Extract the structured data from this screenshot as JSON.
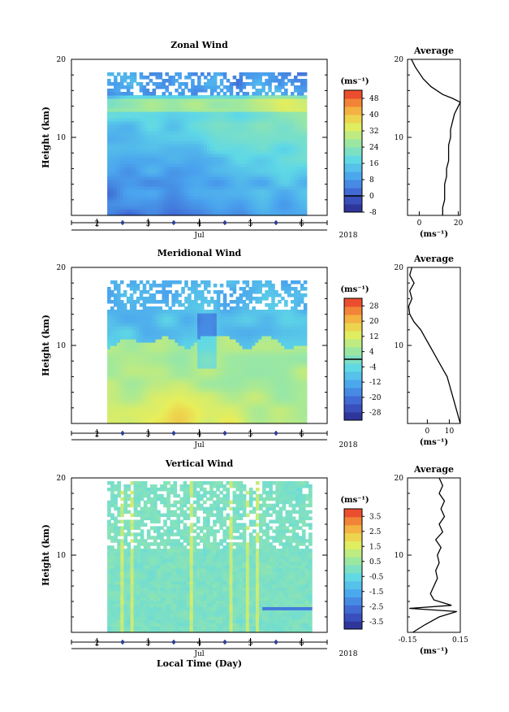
{
  "chart_data": [
    {
      "type": "heatmap",
      "title": "Zonal Wind",
      "ylabel": "Height (km)",
      "ylim": [
        0,
        20
      ],
      "yticks": [
        "10",
        "20"
      ],
      "x_ticks": [
        "2",
        "3",
        "4",
        "5",
        "6"
      ],
      "x_month": "Jul",
      "year": "2018",
      "xlim": [
        1.5,
        6.5
      ],
      "data_x_range": [
        2.2,
        6.1
      ],
      "colorbar": {
        "unit": "(ms⁻¹)",
        "ticks": [
          "48",
          "40",
          "32",
          "24",
          "16",
          "8",
          "0",
          "-8"
        ],
        "range": [
          -8,
          52
        ],
        "contour_level": "0"
      },
      "average": {
        "title": "Average",
        "xlabel": "(ms⁻¹)",
        "xticks": [
          "0",
          "20"
        ],
        "xlim": [
          -6,
          21
        ],
        "profile": [
          [
            12,
            0
          ],
          [
            12,
            1
          ],
          [
            13,
            2
          ],
          [
            13,
            3
          ],
          [
            13,
            4
          ],
          [
            14,
            5
          ],
          [
            14,
            6
          ],
          [
            15,
            7
          ],
          [
            15,
            8
          ],
          [
            15,
            9
          ],
          [
            16,
            10
          ],
          [
            16,
            11
          ],
          [
            17,
            12
          ],
          [
            18,
            13
          ],
          [
            20,
            14
          ],
          [
            21,
            14.5
          ],
          [
            17,
            15
          ],
          [
            12,
            15.5
          ],
          [
            6,
            16.5
          ],
          [
            2,
            17.5
          ],
          [
            -2,
            19
          ],
          [
            -4,
            20
          ]
        ]
      }
    },
    {
      "type": "heatmap",
      "title": "Meridional Wind",
      "ylabel": "Height (km)",
      "ylim": [
        0,
        20
      ],
      "yticks": [
        "10",
        "20"
      ],
      "x_ticks": [
        "2",
        "3",
        "4",
        "5",
        "6"
      ],
      "x_month": "Jul",
      "year": "2018",
      "xlim": [
        1.5,
        6.5
      ],
      "data_x_range": [
        2.2,
        6.1
      ],
      "colorbar": {
        "unit": "(ms⁻¹)",
        "ticks": [
          "28",
          "20",
          "12",
          "4",
          "-4",
          "-12",
          "-20",
          "-28"
        ],
        "range": [
          -32,
          32
        ],
        "contour_level": "0"
      },
      "average": {
        "title": "Average",
        "xlabel": "(ms⁻¹)",
        "xticks": [
          "0",
          "10"
        ],
        "xlim": [
          -9,
          15
        ],
        "profile": [
          [
            15,
            0
          ],
          [
            14,
            1
          ],
          [
            13,
            2
          ],
          [
            12,
            3
          ],
          [
            11,
            4
          ],
          [
            10,
            5
          ],
          [
            9,
            6
          ],
          [
            7,
            7
          ],
          [
            5,
            8
          ],
          [
            3,
            9
          ],
          [
            1,
            10
          ],
          [
            -1,
            11
          ],
          [
            -3,
            12
          ],
          [
            -6,
            13
          ],
          [
            -8,
            14
          ],
          [
            -8.5,
            15
          ],
          [
            -7,
            16
          ],
          [
            -8,
            17
          ],
          [
            -6,
            18
          ],
          [
            -8,
            19
          ],
          [
            -7,
            20
          ]
        ]
      }
    },
    {
      "type": "heatmap",
      "title": "Vertical Wind",
      "ylabel": "Height (km)",
      "xlabel": "Local Time (Day)",
      "ylim": [
        0,
        20
      ],
      "yticks": [
        "10",
        "20"
      ],
      "x_ticks": [
        "2",
        "3",
        "4",
        "5",
        "6"
      ],
      "x_month": "Jul",
      "year": "2018",
      "xlim": [
        1.5,
        6.5
      ],
      "data_x_range": [
        2.2,
        6.2
      ],
      "colorbar": {
        "unit": "(ms⁻¹)",
        "ticks": [
          "3.5",
          "2.5",
          "1.5",
          "0.5",
          "-0.5",
          "-1.5",
          "-2.5",
          "-3.5"
        ],
        "range": [
          -4,
          4
        ]
      },
      "average": {
        "title": "Average",
        "xlabel": "(ms⁻¹)",
        "xticks": [
          "-0.15",
          "0.15"
        ],
        "xlim": [
          -0.15,
          0.15
        ],
        "profile": [
          [
            -0.12,
            0
          ],
          [
            -0.05,
            1
          ],
          [
            0.03,
            2
          ],
          [
            0.13,
            2.7
          ],
          [
            -0.14,
            3.1
          ],
          [
            0.1,
            3.5
          ],
          [
            0.0,
            4.2
          ],
          [
            -0.02,
            5
          ],
          [
            0.0,
            6
          ],
          [
            0.02,
            7
          ],
          [
            0.01,
            8
          ],
          [
            0.03,
            9
          ],
          [
            0.02,
            10
          ],
          [
            0.04,
            11
          ],
          [
            0.01,
            12
          ],
          [
            0.05,
            13
          ],
          [
            0.03,
            14
          ],
          [
            0.06,
            15
          ],
          [
            0.04,
            16
          ],
          [
            0.06,
            17
          ],
          [
            0.03,
            18
          ],
          [
            0.05,
            19
          ],
          [
            0.03,
            20
          ]
        ]
      }
    }
  ]
}
